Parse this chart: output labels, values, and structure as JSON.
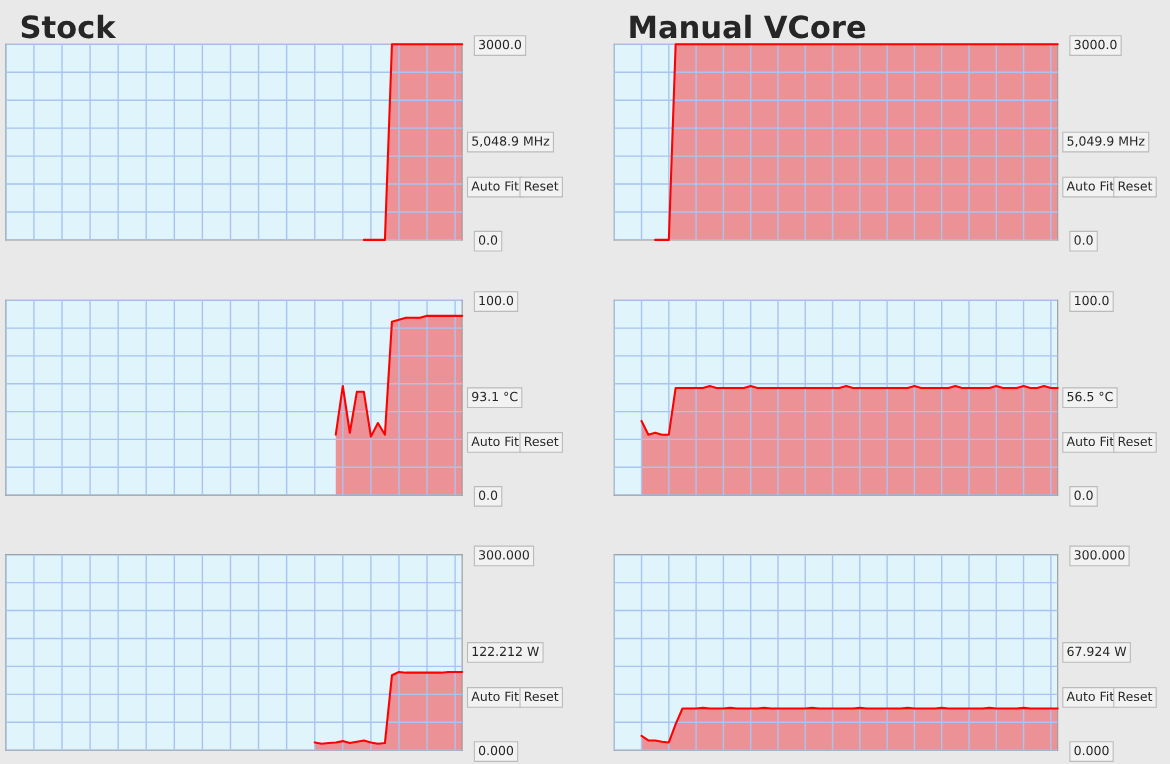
{
  "chart_data": [
    {
      "type": "area",
      "title": "Stock",
      "categories": [
        null,
        null,
        null,
        null,
        null,
        null,
        null,
        null,
        null,
        null,
        null,
        null,
        null,
        null,
        null,
        null,
        null,
        null,
        null,
        null,
        null,
        null,
        null,
        null,
        null,
        null,
        null,
        null,
        null,
        null,
        null,
        null,
        null,
        null,
        null,
        null,
        null,
        null,
        null,
        null,
        null,
        null,
        null,
        null,
        null,
        null,
        null,
        null,
        null,
        null,
        null,
        null,
        null,
        null,
        null,
        null,
        null,
        null,
        null,
        null,
        null,
        null,
        null,
        null,
        null,
        null
      ],
      "series": [
        {
          "color": "#ff0000",
          "values": [
            null,
            null,
            null,
            null,
            null,
            null,
            null,
            null,
            null,
            null,
            null,
            null,
            null,
            null,
            null,
            null,
            null,
            null,
            null,
            null,
            null,
            null,
            null,
            null,
            null,
            null,
            null,
            null,
            null,
            null,
            null,
            null,
            null,
            null,
            null,
            null,
            null,
            null,
            null,
            null,
            null,
            null,
            null,
            null,
            null,
            null,
            null,
            null,
            null,
            null,
            null,
            0,
            0,
            0,
            0,
            3000,
            3000,
            3000,
            3000,
            3000,
            3000,
            3000,
            3000,
            3000,
            3000,
            3000
          ]
        }
      ],
      "ylim": [
        0,
        3000
      ],
      "yticks": [
        {
          "value": 0,
          "label": "0.0"
        },
        {
          "value": 428.6,
          "label": null
        },
        {
          "value": 857.1,
          "label": null
        },
        {
          "value": 1285.7,
          "label": null
        },
        {
          "value": 1714.3,
          "label": null
        },
        {
          "value": 2142.9,
          "label": null
        },
        {
          "value": 2571.4,
          "label": null
        },
        {
          "value": 3000,
          "label": "3000.0"
        }
      ],
      "tick_labels": "y",
      "grid": true,
      "annotations": [
        "5,048.9 MHz",
        "Auto Fit",
        "Reset"
      ]
    },
    {
      "type": "area",
      "title": "Manual VCore",
      "categories": [
        null,
        null,
        null,
        null,
        null,
        null,
        null,
        null,
        null,
        null,
        null,
        null,
        null,
        null,
        null,
        null,
        null,
        null,
        null,
        null,
        null,
        null,
        null,
        null,
        null,
        null,
        null,
        null,
        null,
        null,
        null,
        null,
        null,
        null,
        null,
        null,
        null,
        null,
        null,
        null,
        null,
        null,
        null,
        null,
        null,
        null,
        null,
        null,
        null,
        null,
        null,
        null,
        null,
        null,
        null,
        null,
        null,
        null,
        null,
        null,
        null,
        null,
        null,
        null,
        null,
        null
      ],
      "series": [
        {
          "color": "#ff0000",
          "values": [
            null,
            null,
            null,
            null,
            null,
            null,
            0,
            0,
            0,
            3000,
            3000,
            3000,
            3000,
            3000,
            3000,
            3000,
            3000,
            3000,
            3000,
            3000,
            3000,
            3000,
            3000,
            3000,
            3000,
            3000,
            3000,
            3000,
            3000,
            3000,
            3000,
            3000,
            3000,
            3000,
            3000,
            3000,
            3000,
            3000,
            3000,
            3000,
            3000,
            3000,
            3000,
            3000,
            3000,
            3000,
            3000,
            3000,
            3000,
            3000,
            3000,
            3000,
            3000,
            3000,
            3000,
            3000,
            3000,
            3000,
            3000,
            3000,
            3000,
            3000,
            3000,
            3000,
            3000,
            3000
          ]
        }
      ],
      "ylim": [
        0,
        3000
      ],
      "yticks": [
        {
          "value": 0,
          "label": "0.0"
        },
        {
          "value": 428.6,
          "label": null
        },
        {
          "value": 857.1,
          "label": null
        },
        {
          "value": 1285.7,
          "label": null
        },
        {
          "value": 1714.3,
          "label": null
        },
        {
          "value": 2142.9,
          "label": null
        },
        {
          "value": 2571.4,
          "label": null
        },
        {
          "value": 3000,
          "label": "3000.0"
        }
      ],
      "tick_labels": "y",
      "grid": true,
      "annotations": [
        "5,049.9 MHz",
        "Auto Fit",
        "Reset"
      ]
    },
    {
      "type": "area",
      "categories": [
        null,
        null,
        null,
        null,
        null,
        null,
        null,
        null,
        null,
        null,
        null,
        null,
        null,
        null,
        null,
        null,
        null,
        null,
        null,
        null,
        null,
        null,
        null,
        null,
        null,
        null,
        null,
        null,
        null,
        null,
        null,
        null,
        null,
        null,
        null,
        null,
        null,
        null,
        null,
        null,
        null,
        null,
        null,
        null,
        null,
        null,
        null,
        null,
        null,
        null,
        null,
        null,
        null,
        null,
        null,
        null,
        null,
        null,
        null,
        null,
        null,
        null,
        null,
        null,
        null,
        null
      ],
      "series": [
        {
          "color": "#ff0000",
          "values": [
            null,
            null,
            null,
            null,
            null,
            null,
            null,
            null,
            null,
            null,
            null,
            null,
            null,
            null,
            null,
            null,
            null,
            null,
            null,
            null,
            null,
            null,
            null,
            null,
            null,
            null,
            null,
            null,
            null,
            null,
            null,
            null,
            null,
            null,
            null,
            null,
            null,
            null,
            null,
            null,
            null,
            null,
            null,
            null,
            null,
            null,
            null,
            31,
            56,
            32,
            53,
            53,
            30,
            37,
            31,
            89,
            90,
            91,
            91,
            91,
            92,
            92,
            92,
            92,
            92,
            92
          ]
        }
      ],
      "ylim": [
        0,
        100
      ],
      "yticks": [
        {
          "value": 0,
          "label": "0.0"
        },
        {
          "value": 14.29,
          "label": null
        },
        {
          "value": 28.57,
          "label": null
        },
        {
          "value": 42.86,
          "label": null
        },
        {
          "value": 57.14,
          "label": null
        },
        {
          "value": 71.43,
          "label": null
        },
        {
          "value": 85.71,
          "label": null
        },
        {
          "value": 100,
          "label": "100.0"
        }
      ],
      "tick_labels": "y",
      "grid": true,
      "annotations": [
        "93.1 °C",
        "Auto Fit",
        "Reset"
      ]
    },
    {
      "type": "area",
      "categories": [
        null,
        null,
        null,
        null,
        null,
        null,
        null,
        null,
        null,
        null,
        null,
        null,
        null,
        null,
        null,
        null,
        null,
        null,
        null,
        null,
        null,
        null,
        null,
        null,
        null,
        null,
        null,
        null,
        null,
        null,
        null,
        null,
        null,
        null,
        null,
        null,
        null,
        null,
        null,
        null,
        null,
        null,
        null,
        null,
        null,
        null,
        null,
        null,
        null,
        null,
        null,
        null,
        null,
        null,
        null,
        null,
        null,
        null,
        null,
        null,
        null,
        null,
        null,
        null,
        null,
        null
      ],
      "series": [
        {
          "color": "#ff0000",
          "values": [
            null,
            null,
            null,
            null,
            38,
            31,
            32,
            31,
            31,
            55,
            55,
            55,
            55,
            55,
            56,
            55,
            55,
            55,
            55,
            55,
            56,
            55,
            55,
            55,
            55,
            55,
            55,
            55,
            55,
            55,
            55,
            55,
            55,
            55,
            56,
            55,
            55,
            55,
            55,
            55,
            55,
            55,
            55,
            55,
            56,
            55,
            55,
            55,
            55,
            55,
            56,
            55,
            55,
            55,
            55,
            55,
            56,
            55,
            55,
            55,
            56,
            55,
            55,
            56,
            55,
            55
          ]
        }
      ],
      "ylim": [
        0,
        100
      ],
      "yticks": [
        {
          "value": 0,
          "label": "0.0"
        },
        {
          "value": 14.29,
          "label": null
        },
        {
          "value": 28.57,
          "label": null
        },
        {
          "value": 42.86,
          "label": null
        },
        {
          "value": 57.14,
          "label": null
        },
        {
          "value": 71.43,
          "label": null
        },
        {
          "value": 85.71,
          "label": null
        },
        {
          "value": 100,
          "label": "100.0"
        }
      ],
      "tick_labels": "y",
      "grid": true,
      "annotations": [
        "56.5 °C",
        "Auto Fit",
        "Reset"
      ]
    },
    {
      "type": "area",
      "categories": [
        null,
        null,
        null,
        null,
        null,
        null,
        null,
        null,
        null,
        null,
        null,
        null,
        null,
        null,
        null,
        null,
        null,
        null,
        null,
        null,
        null,
        null,
        null,
        null,
        null,
        null,
        null,
        null,
        null,
        null,
        null,
        null,
        null,
        null,
        null,
        null,
        null,
        null,
        null,
        null,
        null,
        null,
        null,
        null,
        null,
        null,
        null,
        null,
        null,
        null,
        null,
        null,
        null,
        null,
        null,
        null,
        null,
        null,
        null,
        null,
        null,
        null,
        null,
        null,
        null,
        null
      ],
      "series": [
        {
          "color": "#ff0000",
          "values": [
            null,
            null,
            null,
            null,
            null,
            null,
            null,
            null,
            null,
            null,
            null,
            null,
            null,
            null,
            null,
            null,
            null,
            null,
            null,
            null,
            null,
            null,
            null,
            null,
            null,
            null,
            null,
            null,
            null,
            null,
            null,
            null,
            null,
            null,
            null,
            null,
            null,
            null,
            null,
            null,
            null,
            null,
            null,
            null,
            12,
            10,
            11,
            12,
            14,
            11,
            13,
            15,
            12,
            10,
            11,
            115,
            120,
            119,
            119,
            119,
            119,
            119,
            119,
            120,
            120,
            120
          ]
        }
      ],
      "ylim": [
        0,
        300
      ],
      "yticks": [
        {
          "value": 0,
          "label": "0.000"
        },
        {
          "value": 42.86,
          "label": null
        },
        {
          "value": 85.71,
          "label": null
        },
        {
          "value": 128.57,
          "label": null
        },
        {
          "value": 171.43,
          "label": null
        },
        {
          "value": 214.29,
          "label": null
        },
        {
          "value": 257.14,
          "label": null
        },
        {
          "value": 300,
          "label": "300.000"
        }
      ],
      "tick_labels": "y",
      "grid": true,
      "annotations": [
        "122.212 W",
        "Auto Fit",
        "Reset"
      ]
    },
    {
      "type": "area",
      "categories": [
        null,
        null,
        null,
        null,
        null,
        null,
        null,
        null,
        null,
        null,
        null,
        null,
        null,
        null,
        null,
        null,
        null,
        null,
        null,
        null,
        null,
        null,
        null,
        null,
        null,
        null,
        null,
        null,
        null,
        null,
        null,
        null,
        null,
        null,
        null,
        null,
        null,
        null,
        null,
        null,
        null,
        null,
        null,
        null,
        null,
        null,
        null,
        null,
        null,
        null,
        null,
        null,
        null,
        null,
        null,
        null,
        null,
        null,
        null,
        null,
        null,
        null,
        null,
        null,
        null,
        null
      ],
      "series": [
        {
          "color": "#ff0000",
          "values": [
            null,
            null,
            null,
            null,
            22,
            15,
            15,
            13,
            12,
            40,
            64,
            64,
            64,
            65,
            64,
            64,
            64,
            65,
            64,
            64,
            64,
            64,
            65,
            64,
            64,
            64,
            64,
            64,
            64,
            65,
            64,
            64,
            64,
            64,
            64,
            64,
            65,
            64,
            64,
            64,
            64,
            64,
            64,
            65,
            64,
            64,
            64,
            64,
            65,
            64,
            64,
            64,
            64,
            64,
            64,
            65,
            64,
            64,
            64,
            64,
            65,
            64,
            64,
            64,
            64,
            64
          ]
        }
      ],
      "ylim": [
        0,
        300
      ],
      "yticks": [
        {
          "value": 0,
          "label": "0.000"
        },
        {
          "value": 42.86,
          "label": null
        },
        {
          "value": 85.71,
          "label": null
        },
        {
          "value": 128.57,
          "label": null
        },
        {
          "value": 171.43,
          "label": null
        },
        {
          "value": 214.29,
          "label": null
        },
        {
          "value": 257.14,
          "label": null
        },
        {
          "value": 300,
          "label": "300.000"
        }
      ],
      "tick_labels": "y",
      "grid": true,
      "annotations": [
        "67.924 W",
        "Auto Fit",
        "Reset"
      ]
    }
  ]
}
